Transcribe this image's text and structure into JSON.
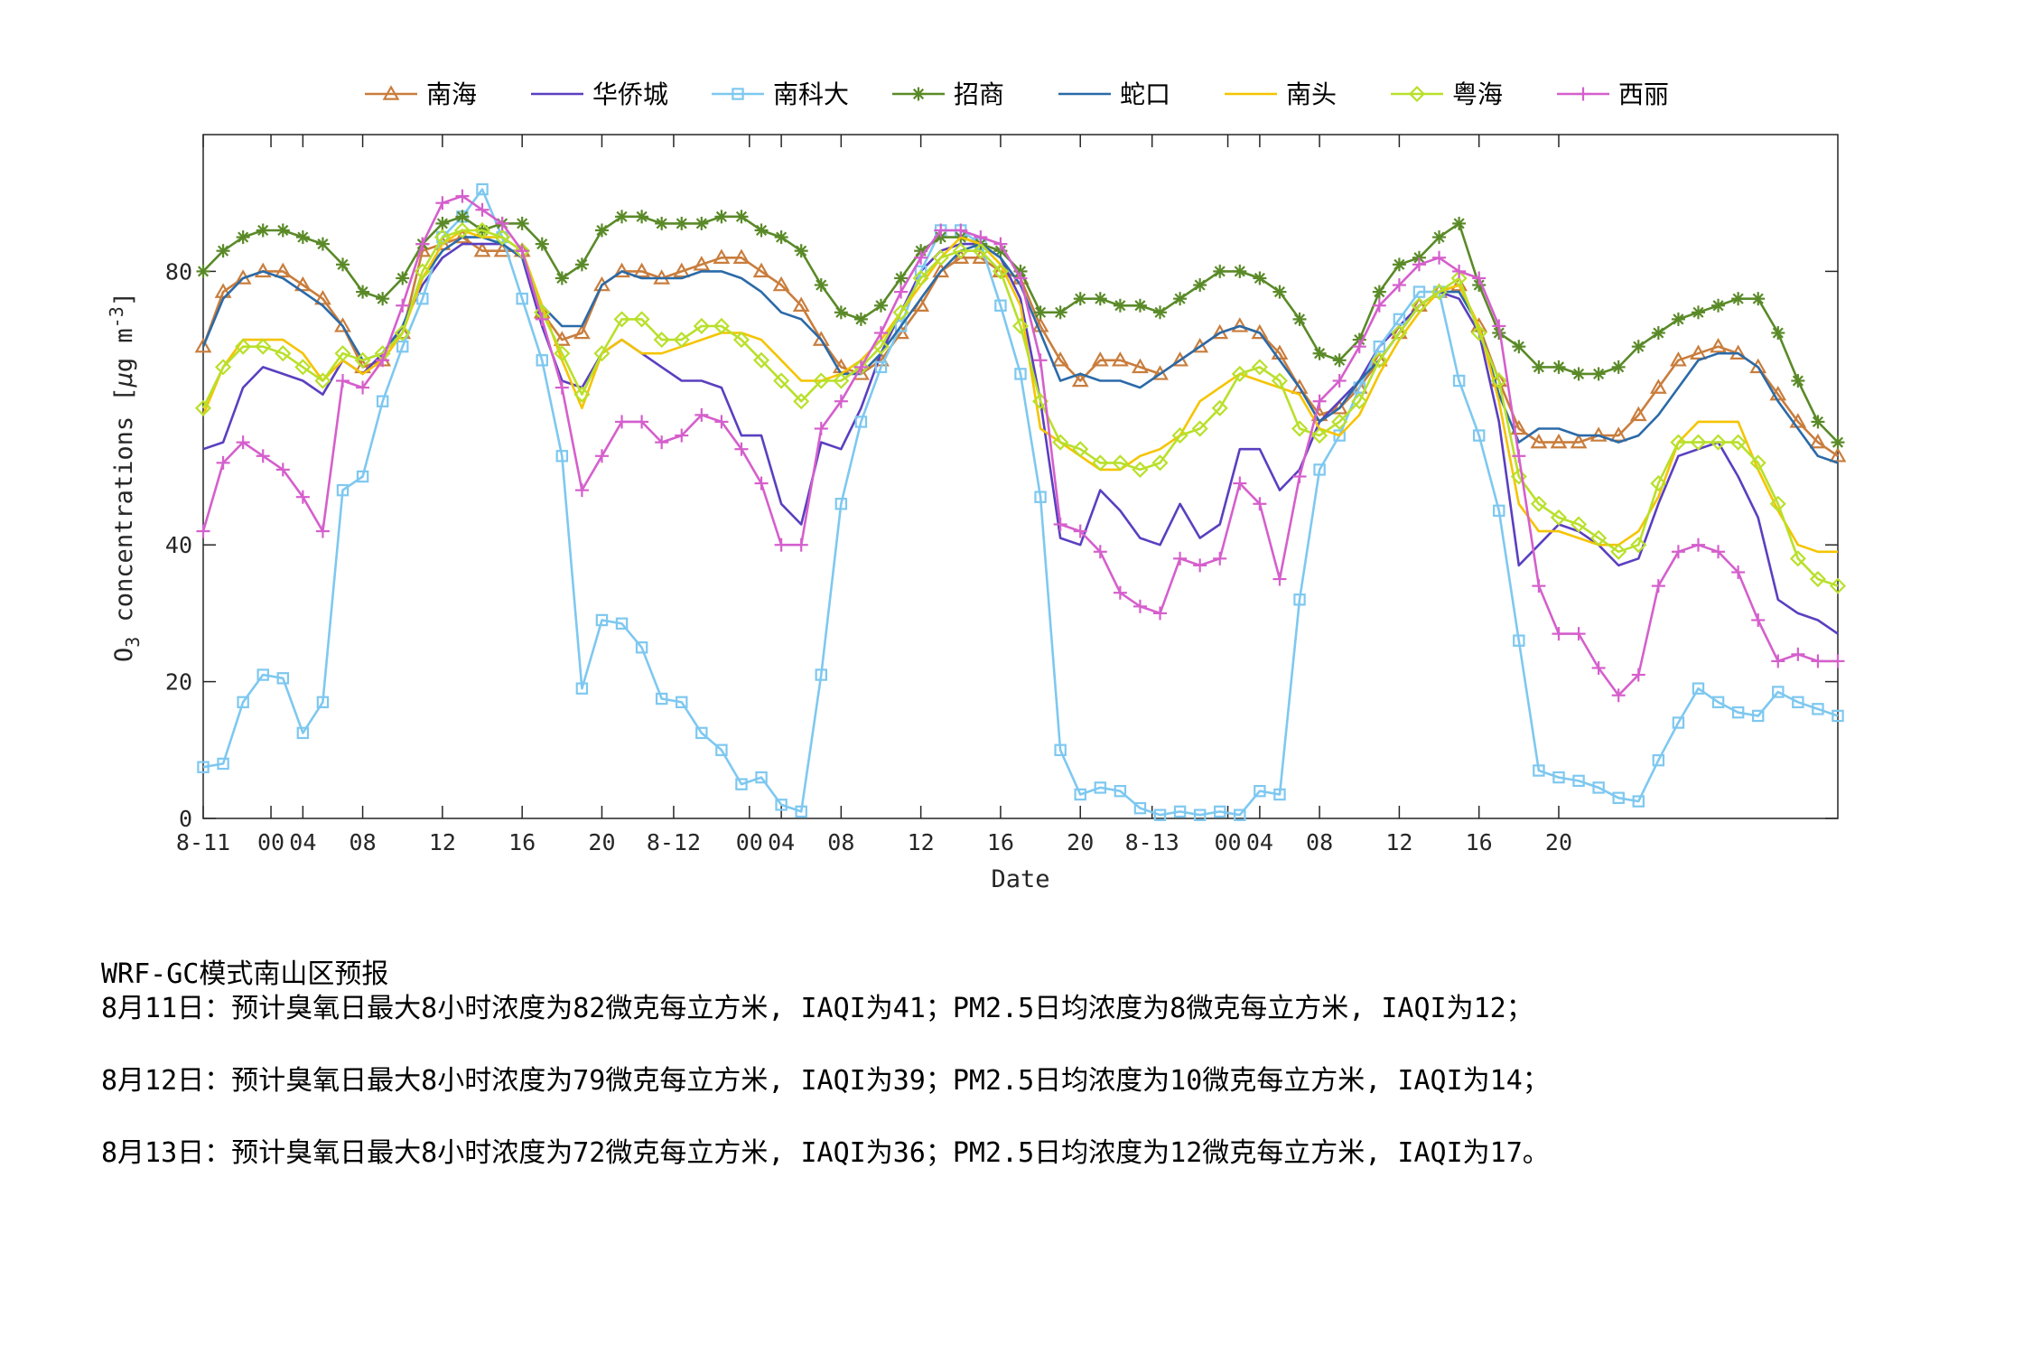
{
  "chart_data": {
    "type": "line",
    "title": "",
    "xlabel": "Date",
    "ylabel": "O3 concentrations [μg m-3]",
    "ylabel_parts": {
      "base": "O",
      "sub": "3",
      "mid": " concentrations [",
      "mu": "μ",
      "rest": "g m",
      "sup": "-3",
      "end": "]"
    },
    "xlim": [
      0,
      82
    ],
    "ylim": [
      0,
      100
    ],
    "yticks": [
      0,
      20,
      40,
      80
    ],
    "xticks": [
      {
        "x": 0,
        "label": "8-11"
      },
      {
        "x": 3.4,
        "label": "00"
      },
      {
        "x": 5,
        "label": "04"
      },
      {
        "x": 8,
        "label": "08"
      },
      {
        "x": 12,
        "label": "12"
      },
      {
        "x": 16,
        "label": "16"
      },
      {
        "x": 20,
        "label": "20"
      },
      {
        "x": 23.6,
        "label": "8-12"
      },
      {
        "x": 27.4,
        "label": "00"
      },
      {
        "x": 29,
        "label": "04"
      },
      {
        "x": 32,
        "label": "08"
      },
      {
        "x": 36,
        "label": "12"
      },
      {
        "x": 40,
        "label": "16"
      },
      {
        "x": 44,
        "label": "20"
      },
      {
        "x": 47.6,
        "label": "8-13"
      },
      {
        "x": 51.4,
        "label": "00"
      },
      {
        "x": 53,
        "label": "04"
      },
      {
        "x": 56,
        "label": "08"
      },
      {
        "x": 60,
        "label": "12"
      },
      {
        "x": 64,
        "label": "16"
      },
      {
        "x": 68,
        "label": "20"
      }
    ],
    "grid": false,
    "legend_position": "top-center",
    "x": [
      0,
      1,
      2,
      3,
      4,
      5,
      6,
      7,
      8,
      9,
      10,
      11,
      12,
      13,
      14,
      15,
      16,
      17,
      18,
      19,
      20,
      21,
      22,
      23,
      24,
      25,
      26,
      27,
      28,
      29,
      30,
      31,
      32,
      33,
      34,
      35,
      36,
      37,
      38,
      39,
      40,
      41,
      42,
      43,
      44,
      45,
      46,
      47,
      48,
      49,
      50,
      51,
      52,
      53,
      54,
      55,
      56,
      57,
      58,
      59,
      60,
      61,
      62,
      63,
      64,
      65,
      66,
      67,
      68,
      69,
      70,
      71,
      72,
      73,
      74,
      75,
      76,
      77,
      78,
      79,
      80,
      81,
      82
    ],
    "series": [
      {
        "name": "南海",
        "color": "#c97d3c",
        "marker": "triangle",
        "values": [
          69,
          77,
          79,
          80,
          80,
          78,
          76,
          72,
          66,
          67,
          71,
          83,
          84,
          85,
          83,
          83,
          83,
          74,
          70,
          71,
          78,
          80,
          80,
          79,
          80,
          81,
          82,
          82,
          80,
          78,
          75,
          70,
          66,
          65,
          67,
          71,
          75,
          80,
          82,
          82,
          80,
          79,
          72,
          67,
          64,
          67,
          67,
          66,
          65,
          67,
          69,
          71,
          72,
          71,
          68,
          63,
          59,
          60,
          63,
          67,
          71,
          75,
          77,
          78,
          72,
          64,
          57,
          55,
          55,
          55,
          56,
          56,
          59,
          63,
          67,
          68,
          69,
          68,
          66,
          62,
          58,
          55,
          53
        ]
      },
      {
        "name": "华侨城",
        "color": "#5a3fc0",
        "marker": "none",
        "values": [
          54,
          55,
          63,
          66,
          65,
          64,
          62,
          67,
          65,
          68,
          72,
          78,
          82,
          84,
          84,
          84,
          82,
          72,
          64,
          63,
          68,
          70,
          68,
          66,
          64,
          64,
          63,
          56,
          56,
          46,
          43,
          55,
          54,
          60,
          68,
          74,
          80,
          83,
          84,
          84,
          82,
          76,
          61,
          41,
          40,
          48,
          45,
          41,
          40,
          46,
          41,
          43,
          54,
          54,
          48,
          51,
          58,
          61,
          64,
          69,
          72,
          75,
          77,
          76,
          71,
          58,
          37,
          40,
          43,
          42,
          40,
          37,
          38,
          46,
          53,
          54,
          55,
          50,
          44,
          32,
          30,
          29,
          27
        ]
      },
      {
        "name": "南科大",
        "color": "#7ec8f0",
        "marker": "square",
        "values": [
          7.5,
          8,
          17,
          21,
          20.5,
          12.5,
          17,
          48,
          50,
          61,
          69,
          76,
          85,
          88,
          92,
          85,
          76,
          67,
          53,
          19,
          29,
          28.5,
          25,
          17.5,
          17,
          12.5,
          10,
          5,
          6,
          2,
          1,
          21,
          46,
          58,
          66,
          72,
          80,
          86,
          86,
          84,
          75,
          65,
          47,
          10,
          3.5,
          4.5,
          4,
          1.5,
          0.5,
          1,
          0.5,
          1,
          0.5,
          4,
          3.5,
          32,
          51,
          56,
          63,
          69,
          73,
          77,
          77,
          64,
          56,
          45,
          26,
          7,
          6,
          5.5,
          4.5,
          3,
          2.5,
          8.5,
          14,
          19,
          17,
          15.5,
          15,
          18.5,
          17,
          16,
          15
        ]
      },
      {
        "name": "招商",
        "color": "#5a8a28",
        "marker": "star",
        "values": [
          80,
          83,
          85,
          86,
          86,
          85,
          84,
          81,
          77,
          76,
          79,
          84,
          87,
          88,
          86,
          87,
          87,
          84,
          79,
          81,
          86,
          88,
          88,
          87,
          87,
          87,
          88,
          88,
          86,
          85,
          83,
          78,
          74,
          73,
          75,
          79,
          83,
          85,
          85,
          84,
          83,
          80,
          74,
          74,
          76,
          76,
          75,
          75,
          74,
          76,
          78,
          80,
          80,
          79,
          77,
          73,
          68,
          67,
          70,
          77,
          81,
          82,
          85,
          87,
          78,
          71,
          69,
          66,
          66,
          65,
          65,
          66,
          69,
          71,
          73,
          74,
          75,
          76,
          76,
          71,
          64,
          58,
          55
        ]
      },
      {
        "name": "蛇口",
        "color": "#2b6aa8",
        "marker": "none",
        "values": [
          69,
          76,
          79,
          80,
          79,
          77,
          75,
          72,
          67,
          68,
          72,
          79,
          83,
          85,
          85,
          84,
          82,
          75,
          72,
          72,
          78,
          80,
          79,
          79,
          79,
          80,
          80,
          79,
          77,
          74,
          73,
          70,
          65,
          65,
          68,
          72,
          76,
          80,
          83,
          84,
          82,
          78,
          71,
          64,
          65,
          64,
          64,
          63,
          65,
          67,
          69,
          71,
          72,
          71,
          67,
          63,
          58,
          60,
          64,
          67,
          71,
          75,
          77,
          77,
          72,
          62,
          55,
          57,
          57,
          56,
          56,
          55,
          56,
          59,
          63,
          67,
          68,
          68,
          66,
          61,
          57,
          53,
          52
        ]
      },
      {
        "name": "南头",
        "color": "#f5c400",
        "marker": "none",
        "values": [
          59,
          66,
          70,
          70,
          70,
          68,
          64,
          67,
          65,
          67,
          71,
          79,
          84,
          86,
          85,
          85,
          83,
          75,
          67,
          60,
          68,
          70,
          68,
          68,
          69,
          70,
          71,
          71,
          70,
          67,
          64,
          64,
          65,
          67,
          70,
          74,
          78,
          82,
          85,
          84,
          81,
          75,
          57,
          55,
          53,
          51,
          51,
          53,
          54,
          56,
          61,
          63,
          65,
          64,
          63,
          62,
          57,
          56,
          59,
          65,
          70,
          74,
          77,
          78,
          72,
          61,
          46,
          42,
          42,
          41,
          40,
          40,
          42,
          47,
          55,
          58,
          58,
          58,
          51,
          45,
          40,
          39,
          39
        ]
      },
      {
        "name": "粤海",
        "color": "#b8e02a",
        "marker": "diamond",
        "values": [
          60,
          66,
          69,
          69,
          68,
          66,
          64,
          68,
          67,
          68,
          71,
          80,
          85,
          86,
          86,
          85,
          83,
          74,
          68,
          62,
          68,
          73,
          73,
          70,
          70,
          72,
          72,
          70,
          67,
          64,
          61,
          64,
          64,
          66,
          69,
          74,
          79,
          82,
          83,
          83,
          80,
          72,
          61,
          55,
          54,
          52,
          52,
          51,
          52,
          56,
          57,
          60,
          65,
          66,
          64,
          57,
          56,
          58,
          61,
          67,
          71,
          75,
          77,
          79,
          71,
          64,
          50,
          46,
          44,
          43,
          41,
          39,
          40,
          49,
          55,
          55,
          55,
          55,
          52,
          46,
          38,
          35,
          34
        ]
      },
      {
        "name": "西丽",
        "color": "#d55fcc",
        "marker": "plus",
        "values": [
          42,
          52,
          55,
          53,
          51,
          47,
          42,
          64,
          63,
          67,
          75,
          84,
          90,
          91,
          89,
          87,
          83,
          73,
          63,
          48,
          53,
          58,
          58,
          55,
          56,
          59,
          58,
          54,
          49,
          40,
          40,
          57,
          61,
          66,
          71,
          77,
          82,
          86,
          86,
          85,
          84,
          79,
          67,
          43,
          42,
          39,
          33,
          31,
          30,
          38,
          37,
          38,
          49,
          46,
          35,
          50,
          61,
          64,
          69,
          75,
          78,
          81,
          82,
          80,
          79,
          72,
          53,
          34,
          27,
          27,
          22,
          18,
          21,
          34,
          39,
          40,
          39,
          36,
          29,
          23,
          24,
          23,
          23
        ]
      }
    ]
  },
  "forecast": {
    "title": "WRF-GC模式南山区预报",
    "lines": [
      "8月11日：预计臭氧日最大8小时浓度为82微克每立方米, IAQI为41；PM2.5日均浓度为8微克每立方米, IAQI为12；",
      "8月12日：预计臭氧日最大8小时浓度为79微克每立方米, IAQI为39；PM2.5日均浓度为10微克每立方米, IAQI为14；",
      "8月13日：预计臭氧日最大8小时浓度为72微克每立方米, IAQI为36；PM2.5日均浓度为12微克每立方米, IAQI为17。"
    ]
  }
}
